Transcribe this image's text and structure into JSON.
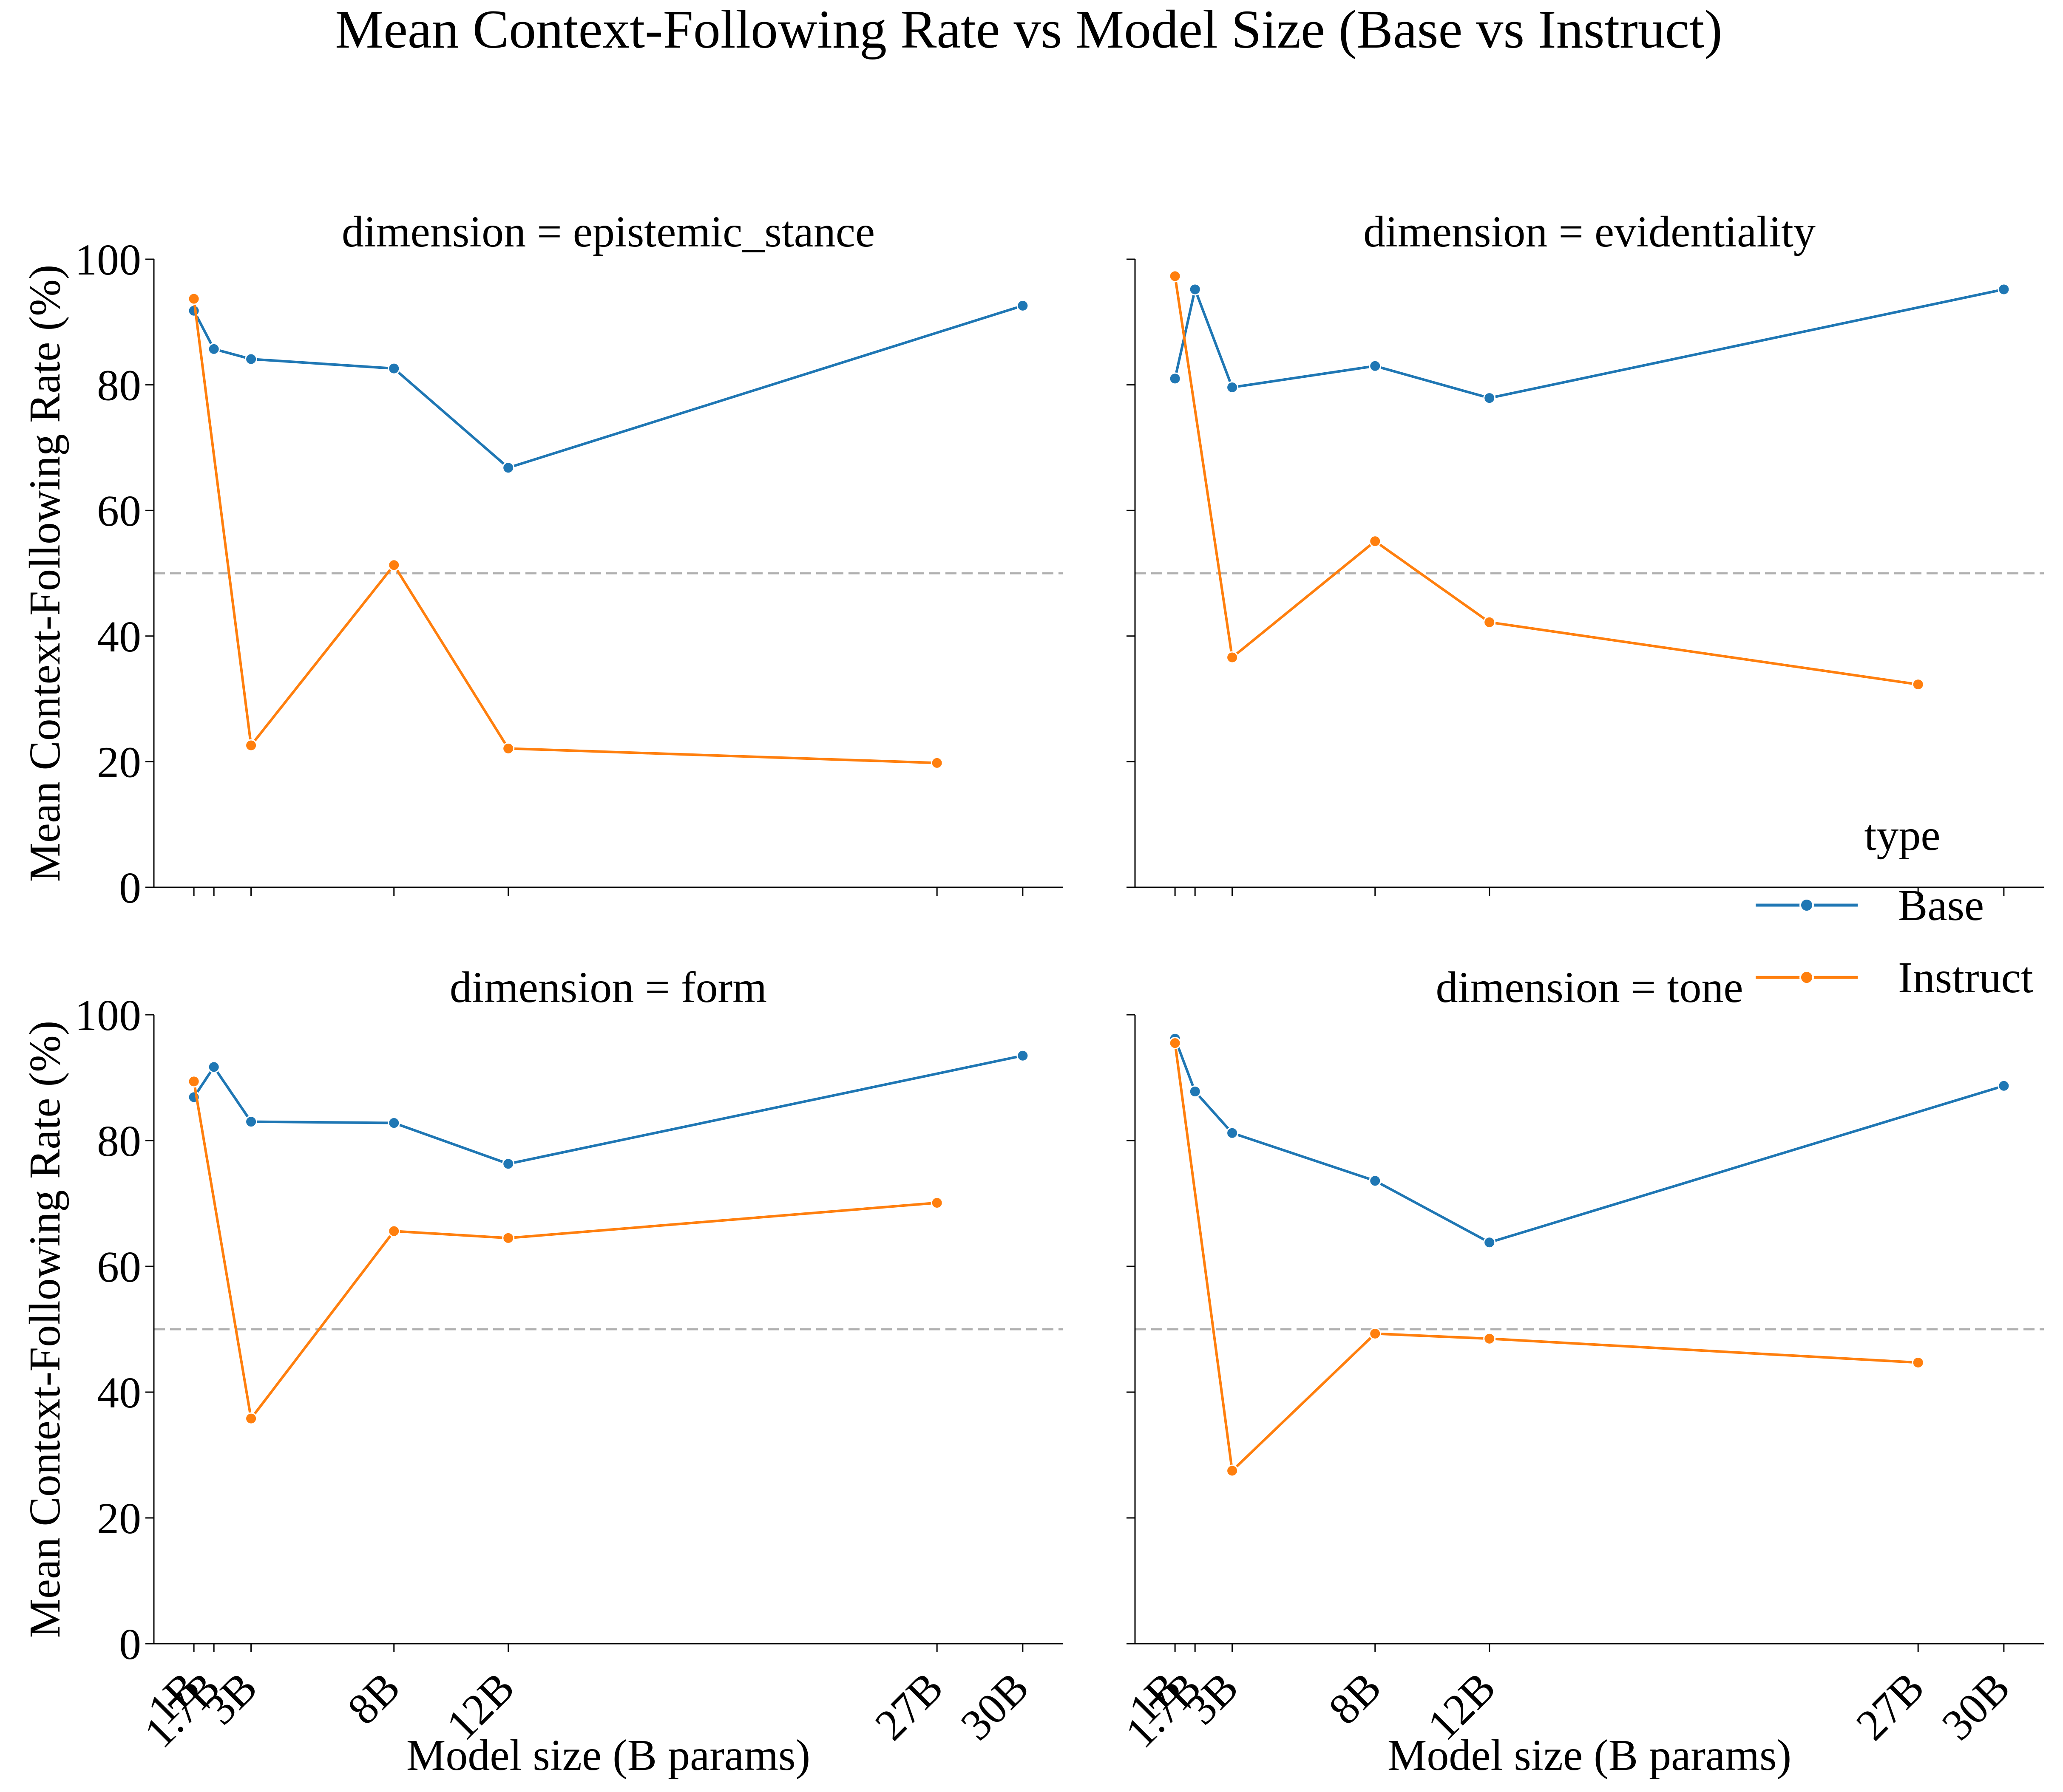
{
  "title": "Mean Context-Following Rate vs Model Size (Base vs Instruct)",
  "xlabel": "Model size (B params)",
  "ylabel": "Mean Context-Following Rate (%)",
  "facet_prefix": "dimension = ",
  "reference_line": 50,
  "x_ticks": [
    {
      "value": 1,
      "label": "1B"
    },
    {
      "value": 1.7,
      "label": "1.7B"
    },
    {
      "value": 3,
      "label": "3B"
    },
    {
      "value": 8,
      "label": "8B"
    },
    {
      "value": 12,
      "label": "12B"
    },
    {
      "value": 27,
      "label": "27B"
    },
    {
      "value": 30,
      "label": "30B"
    }
  ],
  "y_ticks": [
    0,
    20,
    40,
    60,
    80,
    100
  ],
  "xlim": [
    -0.4,
    31.4
  ],
  "ylim": [
    0,
    100
  ],
  "legend": {
    "title": "type",
    "placement": "right, between rows",
    "entries": [
      {
        "label": "Base",
        "color": "#1f77b4"
      },
      {
        "label": "Instruct",
        "color": "#ff7f0e"
      }
    ]
  },
  "colors": {
    "Base": "#1f77b4",
    "Instruct": "#ff7f0e",
    "reference": "#b0b0b0"
  },
  "chart_data": [
    {
      "type": "line",
      "facet": "epistemic_stance",
      "series": [
        {
          "name": "Base",
          "x": [
            1,
            1.7,
            3,
            8,
            12,
            30
          ],
          "values": [
            91.8,
            85.7,
            84.1,
            82.6,
            66.8,
            92.6
          ]
        },
        {
          "name": "Instruct",
          "x": [
            1,
            3,
            8,
            12,
            27
          ],
          "values": [
            93.7,
            22.6,
            51.3,
            22.1,
            19.8
          ]
        }
      ]
    },
    {
      "type": "line",
      "facet": "evidentiality",
      "series": [
        {
          "name": "Base",
          "x": [
            1,
            1.7,
            3,
            8,
            12,
            30
          ],
          "values": [
            81.0,
            95.2,
            79.6,
            83.0,
            77.9,
            95.2
          ]
        },
        {
          "name": "Instruct",
          "x": [
            1,
            3,
            8,
            12,
            27
          ],
          "values": [
            97.3,
            36.6,
            55.1,
            42.2,
            32.3
          ]
        }
      ]
    },
    {
      "type": "line",
      "facet": "form",
      "series": [
        {
          "name": "Base",
          "x": [
            1,
            1.7,
            3,
            8,
            12,
            30
          ],
          "values": [
            86.9,
            91.7,
            83.0,
            82.8,
            76.3,
            93.5
          ]
        },
        {
          "name": "Instruct",
          "x": [
            1,
            3,
            8,
            12,
            27
          ],
          "values": [
            89.4,
            35.8,
            65.6,
            64.5,
            70.1
          ]
        }
      ]
    },
    {
      "type": "line",
      "facet": "tone",
      "series": [
        {
          "name": "Base",
          "x": [
            1,
            1.7,
            3,
            8,
            12,
            30
          ],
          "values": [
            96.2,
            87.8,
            81.2,
            73.6,
            63.8,
            88.7
          ]
        },
        {
          "name": "Instruct",
          "x": [
            1,
            3,
            8,
            12,
            27
          ],
          "values": [
            95.5,
            27.5,
            49.3,
            48.5,
            44.7
          ]
        }
      ]
    }
  ]
}
